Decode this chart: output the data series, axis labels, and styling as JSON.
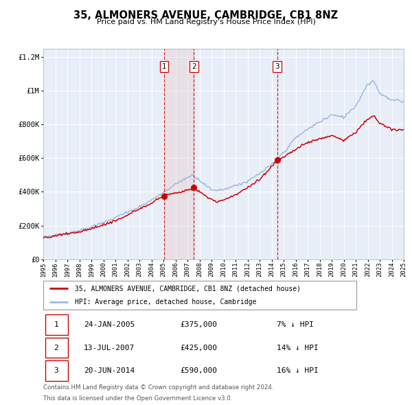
{
  "title": "35, ALMONERS AVENUE, CAMBRIDGE, CB1 8NZ",
  "subtitle": "Price paid vs. HM Land Registry's House Price Index (HPI)",
  "background_color": "#ffffff",
  "plot_bg_color": "#e8eef8",
  "grid_color": "#ffffff",
  "ylim": [
    0,
    1250000
  ],
  "yticks": [
    0,
    200000,
    400000,
    600000,
    800000,
    1000000,
    1200000
  ],
  "ytick_labels": [
    "£0",
    "£200K",
    "£400K",
    "£600K",
    "£800K",
    "£1M",
    "£1.2M"
  ],
  "xmin": 1995,
  "xmax": 2025,
  "hpi_color": "#a0b8e0",
  "price_color": "#cc0000",
  "vline_color": "#cc0000",
  "sale_shade_color": "#e8c8c8",
  "sale_shade_alpha": 0.35,
  "sales": [
    {
      "label": "1",
      "date_str": "24-JAN-2005",
      "year": 2005.07,
      "price": 375000,
      "hpi_pct": "7%"
    },
    {
      "label": "2",
      "date_str": "13-JUL-2007",
      "year": 2007.54,
      "price": 425000,
      "hpi_pct": "14%"
    },
    {
      "label": "3",
      "date_str": "20-JUN-2014",
      "year": 2014.47,
      "price": 590000,
      "hpi_pct": "16%"
    }
  ],
  "legend_price_label": "35, ALMONERS AVENUE, CAMBRIDGE, CB1 8NZ (detached house)",
  "legend_hpi_label": "HPI: Average price, detached house, Cambridge",
  "footer_line1": "Contains HM Land Registry data © Crown copyright and database right 2024.",
  "footer_line2": "This data is licensed under the Open Government Licence v3.0.",
  "table_rows": [
    [
      "1",
      "24-JAN-2005",
      "£375,000",
      "7% ↓ HPI"
    ],
    [
      "2",
      "13-JUL-2007",
      "£425,000",
      "14% ↓ HPI"
    ],
    [
      "3",
      "20-JUN-2014",
      "£590,000",
      "16% ↓ HPI"
    ]
  ]
}
